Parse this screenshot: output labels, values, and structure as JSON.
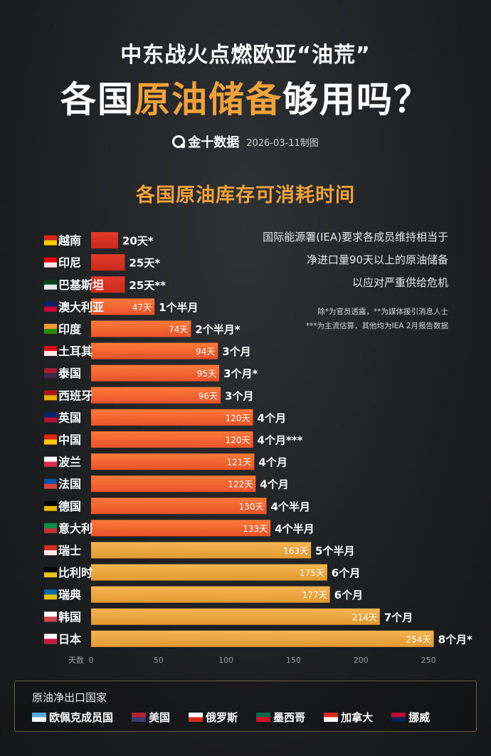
{
  "header": {
    "subtitle": "中东战火点燃欧亚“油荒”",
    "title_part1": "各国",
    "title_highlight": "原油储备",
    "title_part2": "够用吗？",
    "brand": "金十数据",
    "date": "2026-03-11制图"
  },
  "notes": {
    "line1": "国际能源署(IEA)要求各成员维持相当于",
    "line2": "净进口量90天以上的原油储备",
    "line3": "以应对严重供给危机",
    "footnote1": "除*为官员透露，**为媒体援引消息人士",
    "footnote2": "***为主流估算，其他均为IEA 2月报告数据"
  },
  "colors": {
    "red": "#e23a2a",
    "orange_top": "#ff7a3a",
    "orange_bottom": "#e8522a",
    "yellow_top": "#f4b454",
    "yellow_bottom": "#e39a30",
    "accent": "#f0a23a"
  },
  "chart_data": {
    "type": "bar",
    "orientation": "horizontal",
    "title": "各国原油库存可消耗时间",
    "xlabel": "天数",
    "xlim": [
      0,
      250
    ],
    "xticks": [
      "0",
      "50",
      "100",
      "150",
      "200",
      "250"
    ],
    "categories": [
      "越南",
      "印尼",
      "巴基斯坦",
      "澳大利亚",
      "印度",
      "土耳其",
      "泰国",
      "西班牙",
      "英国",
      "中国",
      "波兰",
      "法国",
      "德国",
      "意大利",
      "瑞士",
      "比利时",
      "瑞典",
      "韩国",
      "日本"
    ],
    "values": [
      20,
      25,
      25,
      47,
      74,
      94,
      95,
      96,
      120,
      120,
      121,
      122,
      130,
      133,
      163,
      175,
      177,
      214,
      254
    ],
    "value_labels": [
      "20天*",
      "25天*",
      "25天**",
      "47天",
      "74天",
      "94天",
      "95天",
      "96天",
      "120天",
      "120天",
      "121天",
      "122天",
      "130天",
      "133天",
      "163天",
      "175天",
      "177天",
      "214天",
      "254天"
    ],
    "durations": [
      "",
      "",
      "",
      "1个半月",
      "2个半月*",
      "3个月",
      "3个月*",
      "3个月",
      "4个月",
      "4个月***",
      "4个月",
      "4个月",
      "4个半月",
      "4个半月",
      "5个半月",
      "6个月",
      "6个月",
      "7个月",
      "8个月*"
    ],
    "color_groups": [
      "red",
      "red",
      "red",
      "orange",
      "orange",
      "orange",
      "orange",
      "orange",
      "orange",
      "orange",
      "orange",
      "orange",
      "orange",
      "orange",
      "yellow",
      "yellow",
      "yellow",
      "yellow",
      "yellow"
    ],
    "flag_colors": [
      [
        "#da251d",
        "#ffde00"
      ],
      [
        "#e70011",
        "#ffffff"
      ],
      [
        "#01411c",
        "#ffffff"
      ],
      [
        "#012169",
        "#e4002b"
      ],
      [
        "#ff9933",
        "#138808"
      ],
      [
        "#e30a17",
        "#ffffff"
      ],
      [
        "#a51931",
        "#2d2a4a"
      ],
      [
        "#aa151b",
        "#f1bf00"
      ],
      [
        "#012169",
        "#c8102e"
      ],
      [
        "#de2910",
        "#ffde00"
      ],
      [
        "#ffffff",
        "#dc143c"
      ],
      [
        "#0055a4",
        "#ef4135"
      ],
      [
        "#000000",
        "#ffce00"
      ],
      [
        "#009246",
        "#ce2b37"
      ],
      [
        "#d52b1e",
        "#ffffff"
      ],
      [
        "#000000",
        "#fdda24"
      ],
      [
        "#006aa7",
        "#fecc00"
      ],
      [
        "#ffffff",
        "#cd2e3a"
      ],
      [
        "#ffffff",
        "#bc002d"
      ]
    ]
  },
  "legend": {
    "title": "原油净出口国家",
    "items": [
      {
        "label": "欧佩克成员国",
        "icon": "opec-icon",
        "c1": "#5aa7e6",
        "c2": "#ffffff"
      },
      {
        "label": "美国",
        "icon": "us-flag-icon",
        "c1": "#b22234",
        "c2": "#3c3b6e"
      },
      {
        "label": "俄罗斯",
        "icon": "russia-flag-icon",
        "c1": "#ffffff",
        "c2": "#d52b1e"
      },
      {
        "label": "墨西哥",
        "icon": "mexico-flag-icon",
        "c1": "#006847",
        "c2": "#ce1126"
      },
      {
        "label": "加拿大",
        "icon": "canada-flag-icon",
        "c1": "#d52b1e",
        "c2": "#ffffff"
      },
      {
        "label": "挪威",
        "icon": "norway-flag-icon",
        "c1": "#ba0c2f",
        "c2": "#00205b"
      }
    ]
  }
}
